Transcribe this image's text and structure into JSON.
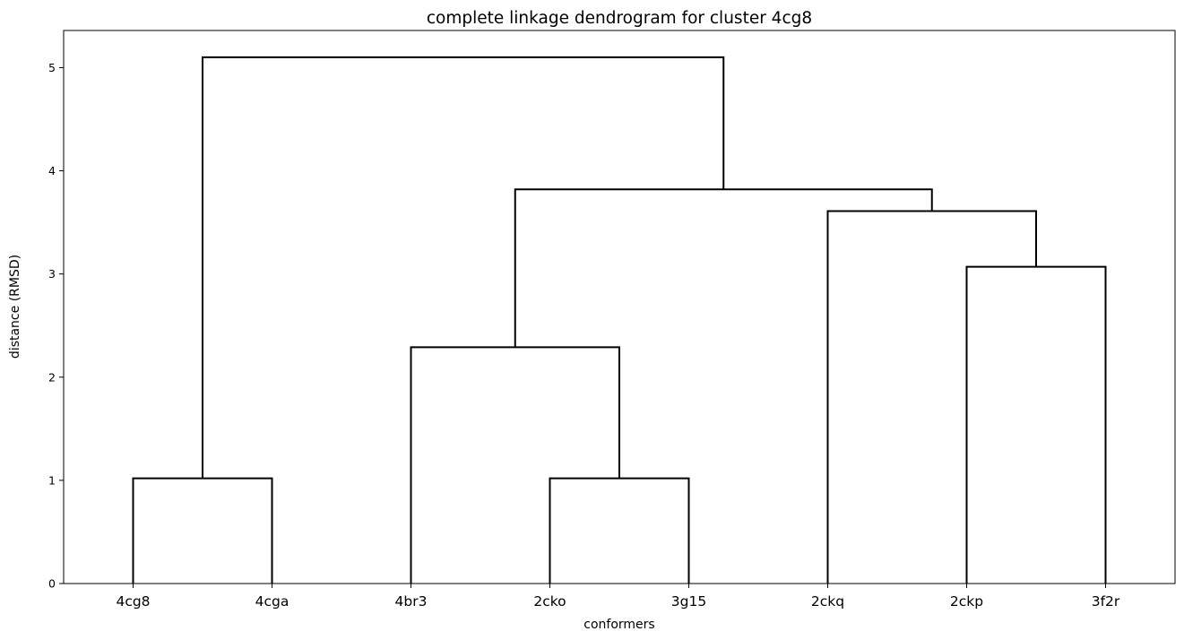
{
  "chart_data": {
    "type": "dendrogram",
    "title": "complete linkage dendrogram for cluster 4cg8",
    "xlabel": "conformers",
    "ylabel": "distance (RMSD)",
    "leaves": [
      "4cg8",
      "4cga",
      "4br3",
      "2cko",
      "3g15",
      "2ckq",
      "2ckp",
      "3f2r"
    ],
    "yticks": [
      0,
      1,
      2,
      3,
      4,
      5
    ],
    "ylim": [
      0,
      5.36
    ],
    "grid": false,
    "line_color": "#000000",
    "merges": [
      {
        "left": "4cg8",
        "right": "4cga",
        "height": 1.02
      },
      {
        "left": "2cko",
        "right": "3g15",
        "height": 1.02
      },
      {
        "left": "4br3",
        "right": "(2cko,3g15)",
        "height": 2.29
      },
      {
        "left": "2ckp",
        "right": "3f2r",
        "height": 3.07
      },
      {
        "left": "2ckq",
        "right": "(2ckp,3f2r)",
        "height": 3.61
      },
      {
        "left": "(4br3,(2cko,3g15))",
        "right": "(2ckq,(2ckp,3f2r))",
        "height": 3.82
      },
      {
        "left": "(4cg8,4cga)",
        "right": "((4br3,(2cko,3g15)),(2ckq,(2ckp,3f2r)))",
        "height": 5.1
      }
    ]
  }
}
